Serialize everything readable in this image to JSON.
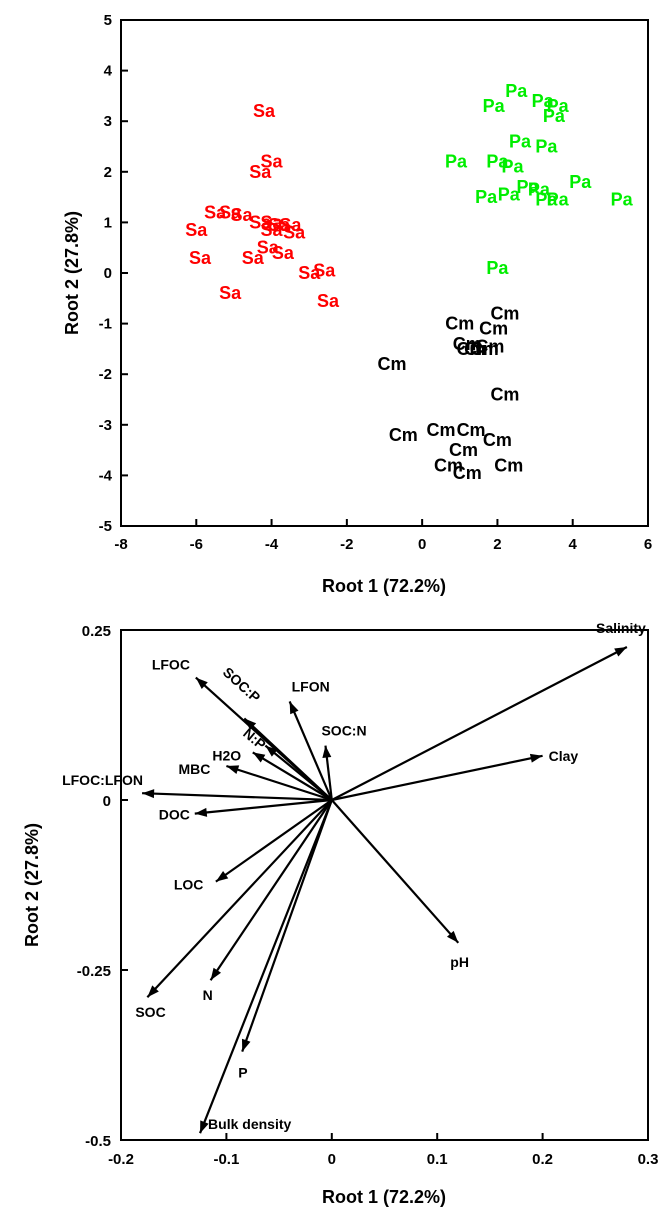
{
  "chart_data": [
    {
      "type": "scatter",
      "title": "",
      "xlabel": "Root 1 (72.2%)",
      "ylabel": "Root 2 (27.8%)",
      "xlim": [
        -8,
        6
      ],
      "ylim": [
        -5,
        5
      ],
      "xticks": [
        "-8",
        "-6",
        "-4",
        "-2",
        "0",
        "2",
        "4",
        "6"
      ],
      "yticks": [
        "-5",
        "-4",
        "-3",
        "-2",
        "-1",
        "0",
        "1",
        "2",
        "3",
        "4",
        "5"
      ],
      "grid": false,
      "series": [
        {
          "label": "Sa",
          "color": "#ff0000",
          "points": [
            [
              -4.2,
              3.2
            ],
            [
              -4.3,
              2.0
            ],
            [
              -4.0,
              2.2
            ],
            [
              -5.5,
              1.2
            ],
            [
              -5.1,
              1.2
            ],
            [
              -4.8,
              1.15
            ],
            [
              -4.3,
              1.0
            ],
            [
              -4.0,
              1.0
            ],
            [
              -3.8,
              0.95
            ],
            [
              -3.5,
              0.95
            ],
            [
              -6.0,
              0.85
            ],
            [
              -4.0,
              0.85
            ],
            [
              -3.4,
              0.8
            ],
            [
              -4.1,
              0.5
            ],
            [
              -3.7,
              0.4
            ],
            [
              -5.9,
              0.3
            ],
            [
              -4.5,
              0.3
            ],
            [
              -3.0,
              0.0
            ],
            [
              -2.6,
              0.05
            ],
            [
              -5.1,
              -0.4
            ],
            [
              -2.5,
              -0.55
            ]
          ]
        },
        {
          "label": "Pa",
          "color": "#00ee00",
          "points": [
            [
              2.5,
              3.6
            ],
            [
              1.9,
              3.3
            ],
            [
              3.2,
              3.4
            ],
            [
              3.6,
              3.3
            ],
            [
              3.5,
              3.1
            ],
            [
              2.6,
              2.6
            ],
            [
              3.3,
              2.5
            ],
            [
              0.9,
              2.2
            ],
            [
              2.0,
              2.2
            ],
            [
              2.4,
              2.1
            ],
            [
              4.2,
              1.8
            ],
            [
              2.8,
              1.7
            ],
            [
              3.1,
              1.65
            ],
            [
              1.7,
              1.5
            ],
            [
              2.3,
              1.55
            ],
            [
              3.3,
              1.45
            ],
            [
              3.6,
              1.45
            ],
            [
              5.3,
              1.45
            ],
            [
              2.0,
              0.1
            ]
          ]
        },
        {
          "label": "Cm",
          "color": "#000000",
          "points": [
            [
              2.2,
              -0.8
            ],
            [
              1.0,
              -1.0
            ],
            [
              1.9,
              -1.1
            ],
            [
              1.2,
              -1.4
            ],
            [
              1.5,
              -1.5
            ],
            [
              1.8,
              -1.45
            ],
            [
              1.3,
              -1.5
            ],
            [
              1.65,
              -1.5
            ],
            [
              -0.8,
              -1.8
            ],
            [
              2.2,
              -2.4
            ],
            [
              1.3,
              -3.1
            ],
            [
              0.5,
              -3.1
            ],
            [
              -0.5,
              -3.2
            ],
            [
              2.0,
              -3.3
            ],
            [
              1.1,
              -3.5
            ],
            [
              0.7,
              -3.8
            ],
            [
              2.3,
              -3.8
            ],
            [
              1.2,
              -3.95
            ]
          ]
        }
      ]
    },
    {
      "type": "biplot",
      "title": "",
      "xlabel": "Root 1 (72.2%)",
      "ylabel": "Root 2 (27.8%)",
      "xlim": [
        -0.2,
        0.3
      ],
      "ylim": [
        -0.5,
        0.25
      ],
      "xticks": [
        "-0.2",
        "-0.1",
        "0",
        "0.1",
        "0.2",
        "0.3"
      ],
      "yticks": [
        "0.25",
        "0",
        "-0.25",
        "-0.5"
      ],
      "grid": false,
      "vectors": [
        {
          "label": "Salinity",
          "x": 0.28,
          "y": 0.225
        },
        {
          "label": "Clay",
          "x": 0.2,
          "y": 0.065
        },
        {
          "label": "LFOC",
          "x": -0.129,
          "y": 0.18
        },
        {
          "label": "SOC:P",
          "x": -0.083,
          "y": 0.12
        },
        {
          "label": "LFON",
          "x": -0.04,
          "y": 0.145
        },
        {
          "label": "N:P",
          "x": -0.063,
          "y": 0.08
        },
        {
          "label": "H2O",
          "x": -0.075,
          "y": 0.07
        },
        {
          "label": "SOC:N",
          "x": -0.006,
          "y": 0.08
        },
        {
          "label": "MBC",
          "x": -0.1,
          "y": 0.05
        },
        {
          "label": "LFOC:LFON",
          "x": -0.18,
          "y": 0.01
        },
        {
          "label": "DOC",
          "x": -0.13,
          "y": -0.02
        },
        {
          "label": "LOC",
          "x": -0.11,
          "y": -0.12
        },
        {
          "label": "pH",
          "x": 0.12,
          "y": -0.21
        },
        {
          "label": "SOC",
          "x": -0.175,
          "y": -0.29
        },
        {
          "label": "N",
          "x": -0.115,
          "y": -0.265
        },
        {
          "label": "P",
          "x": -0.085,
          "y": -0.37
        },
        {
          "label": "Bulk density",
          "x": -0.125,
          "y": -0.49
        }
      ]
    }
  ]
}
